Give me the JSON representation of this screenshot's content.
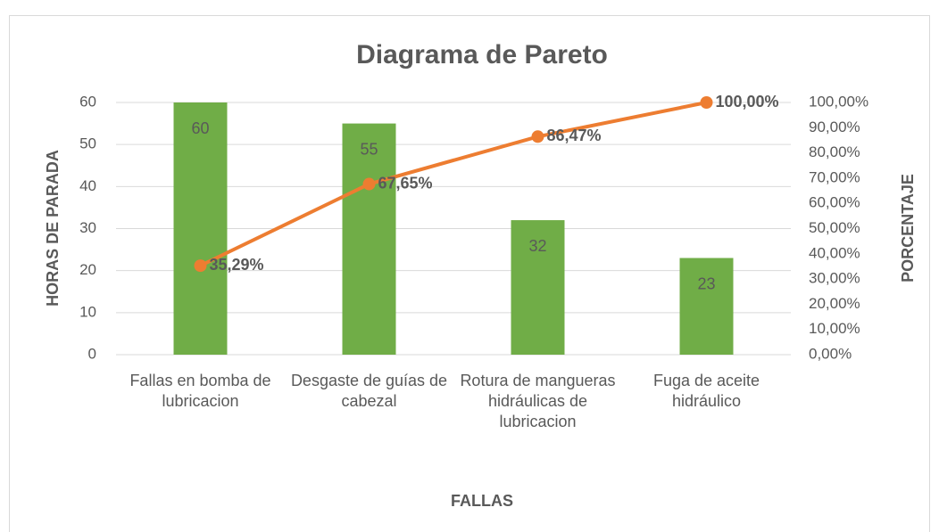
{
  "chart_data": {
    "type": "pareto",
    "title": "Diagrama de Pareto",
    "xlabel": "FALLAS",
    "ylabel": "HORAS DE PARADA",
    "y2label": "PORCENTAJE",
    "categories": [
      "Fallas en bomba de lubricacion",
      "Desgaste de guías de cabezal",
      "Rotura de mangueras hidráulicas de lubricacion",
      "Fuga de aceite hidráulico"
    ],
    "series": [
      {
        "type": "bar",
        "color": "#70ad47",
        "values": [
          60,
          55,
          32,
          23
        ]
      },
      {
        "type": "line",
        "axis": "y2",
        "color": "#ed7d31",
        "values": [
          35.29,
          67.65,
          86.47,
          100
        ],
        "value_labels": [
          "35,29%",
          "67,65%",
          "86,47%",
          "100,00%"
        ]
      }
    ],
    "ylim": [
      0,
      60
    ],
    "yticks": [
      0,
      10,
      20,
      30,
      40,
      50,
      60
    ],
    "y2lim": [
      0,
      100
    ],
    "y2ticks": [
      {
        "value": 0,
        "label": "0,00%"
      },
      {
        "value": 10,
        "label": "10,00%"
      },
      {
        "value": 20,
        "label": "20,00%"
      },
      {
        "value": 30,
        "label": "30,00%"
      },
      {
        "value": 40,
        "label": "40,00%"
      },
      {
        "value": 50,
        "label": "50,00%"
      },
      {
        "value": 60,
        "label": "60,00%"
      },
      {
        "value": 70,
        "label": "70,00%"
      },
      {
        "value": 80,
        "label": "80,00%"
      },
      {
        "value": 90,
        "label": "90,00%"
      },
      {
        "value": 100,
        "label": "100,00%"
      }
    ],
    "grid": true
  }
}
